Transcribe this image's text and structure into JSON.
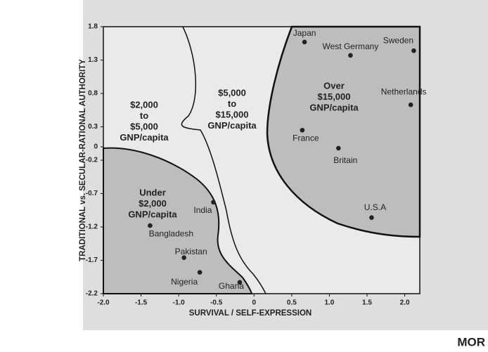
{
  "chart_data": {
    "type": "scatter",
    "xlabel": "SURVIVAL / SELF-EXPRESSION",
    "ylabel": "TRADITIONAL vs. SECULAR-RATIONAL AUTHORITY",
    "xlim": [
      -2.0,
      2.2
    ],
    "ylim": [
      -2.2,
      1.8
    ],
    "xticks": [
      {
        "value": -2.0,
        "label": "-2.0"
      },
      -1.5,
      {
        "value": -1.0,
        "label": "-1.0"
      },
      -0.5,
      0,
      0.5,
      {
        "value": 1.0,
        "label": "1.0"
      },
      1.5,
      {
        "value": 2.0,
        "label": "2.0"
      }
    ],
    "yticks": [
      1.8,
      1.3,
      0.8,
      0.3,
      0,
      -0.2,
      -0.7,
      -1.2,
      -1.7,
      -2.2
    ],
    "labels": [
      "Japan",
      "West Germany",
      "Sweden",
      "Netherlands",
      "France",
      "Britain",
      "U.S.A",
      "India",
      "Bangladesh",
      "Pakistan",
      "Nigeria",
      "Ghana"
    ],
    "x": [
      0.67,
      1.28,
      2.12,
      2.08,
      0.64,
      1.12,
      1.56,
      -0.54,
      -1.38,
      -0.93,
      -0.72,
      -0.19
    ],
    "values": [
      1.57,
      1.37,
      1.44,
      0.63,
      0.25,
      -0.02,
      -1.06,
      -0.83,
      -1.18,
      -1.66,
      -1.88,
      -2.03
    ],
    "color": "#222222",
    "regions": [
      {
        "lines": [
          "$2,000",
          "to",
          "$5,000",
          "GNP/capita"
        ]
      },
      {
        "lines": [
          "$5,000",
          "to",
          "$15,000",
          "GNP/capita"
        ]
      },
      {
        "lines": [
          "Over",
          "$15,000",
          "GNP/capita"
        ]
      },
      {
        "lines": [
          "Under",
          "$2,000",
          "GNP/capita"
        ]
      }
    ]
  },
  "footer_text": "MOR"
}
